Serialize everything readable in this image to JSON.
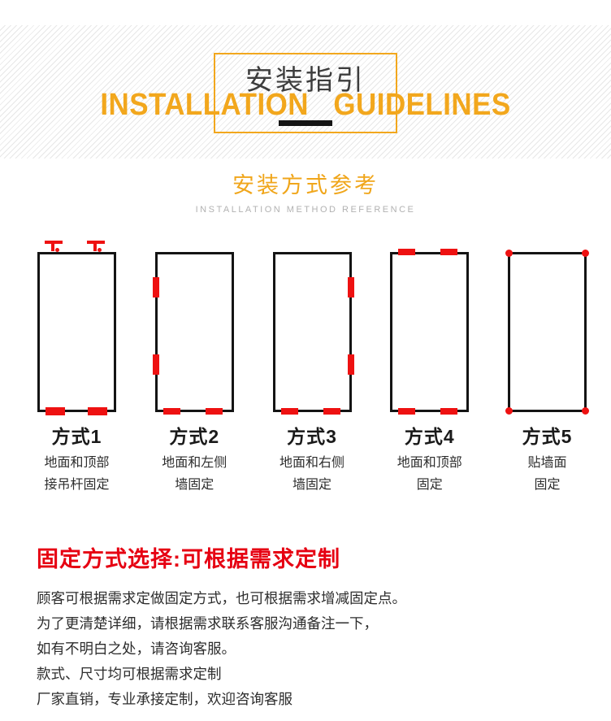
{
  "header": {
    "title_cn": "安装指引",
    "title_en": "INSTALLATION GUIDELINES"
  },
  "reference": {
    "title_cn": "安装方式参考",
    "subtitle_en": "INSTALLATION METHOD REFERENCE"
  },
  "methods": [
    {
      "name": "方式1",
      "desc_lines": [
        "地面和顶部",
        "接吊杆固定"
      ],
      "marks": [
        "top-hanger-hooks",
        "bottom-bars-big"
      ]
    },
    {
      "name": "方式2",
      "desc_lines": [
        "地面和左侧",
        "墙固定"
      ],
      "marks": [
        "left-wall-bars",
        "bottom-bars"
      ]
    },
    {
      "name": "方式3",
      "desc_lines": [
        "地面和右侧",
        "墙固定"
      ],
      "marks": [
        "right-wall-bars",
        "bottom-bars"
      ]
    },
    {
      "name": "方式4",
      "desc_lines": [
        "地面和顶部",
        "固定"
      ],
      "marks": [
        "top-bars",
        "bottom-bars"
      ]
    },
    {
      "name": "方式5",
      "desc_lines": [
        "贴墙面",
        "固定"
      ],
      "marks": [
        "corner-dots"
      ]
    }
  ],
  "custom": {
    "heading": "固定方式选择:可根据需求定制",
    "lines": [
      "顾客可根据需求定做固定方式，也可根据需求增减固定点。",
      "为了更清楚详细，请根据需求联系客服沟通备注一下，",
      "如有不明白之处，请咨询客服。",
      "款式、尺寸均可根据需求定制",
      "厂家直销，专业承接定制，欢迎咨询客服"
    ]
  },
  "colors": {
    "accent_yellow": "#f2a71d",
    "gold": "#f0a61b",
    "mark_red": "#ee1111",
    "heading_red": "#e60012",
    "title_dark": "#3d3d3d",
    "subtitle_gray": "#b2b2b2",
    "body_text": "#2d2d2d",
    "diagram_border": "#141414"
  }
}
